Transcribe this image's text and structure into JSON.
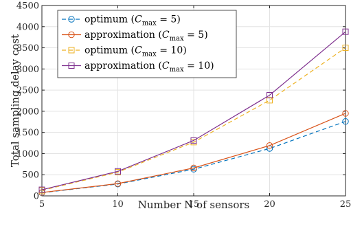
{
  "chart_data": {
    "type": "line",
    "title": "",
    "xlabel": "Number N of sensors",
    "ylabel": "Total sampling delay cost",
    "xlim": [
      5,
      25
    ],
    "ylim": [
      0,
      4500
    ],
    "xticks": [
      "5",
      "10",
      "15",
      "20",
      "25"
    ],
    "yticks": [
      "0",
      "500",
      "1000",
      "1500",
      "2000",
      "2500",
      "3000",
      "3500",
      "4000",
      "4500"
    ],
    "x": [
      5,
      10,
      15,
      20,
      25
    ],
    "grid": true,
    "legend_position": "top-left",
    "series": [
      {
        "name": "optimum (Cmax = 5)",
        "values": [
          75,
          280,
          630,
          1120,
          1760
        ],
        "color": "#0072BD",
        "marker": "circle",
        "dash": "dashed"
      },
      {
        "name": "approximation (Cmax = 5)",
        "values": [
          80,
          290,
          660,
          1190,
          1950
        ],
        "color": "#D95319",
        "marker": "circle",
        "dash": "solid"
      },
      {
        "name": "optimum (Cmax = 10)",
        "values": [
          130,
          560,
          1270,
          2260,
          3500
        ],
        "color": "#EDB120",
        "marker": "square",
        "dash": "dashed"
      },
      {
        "name": "approximation (Cmax = 10)",
        "values": [
          145,
          580,
          1310,
          2380,
          3880
        ],
        "color": "#7E2F8E",
        "marker": "square",
        "dash": "solid"
      }
    ]
  }
}
